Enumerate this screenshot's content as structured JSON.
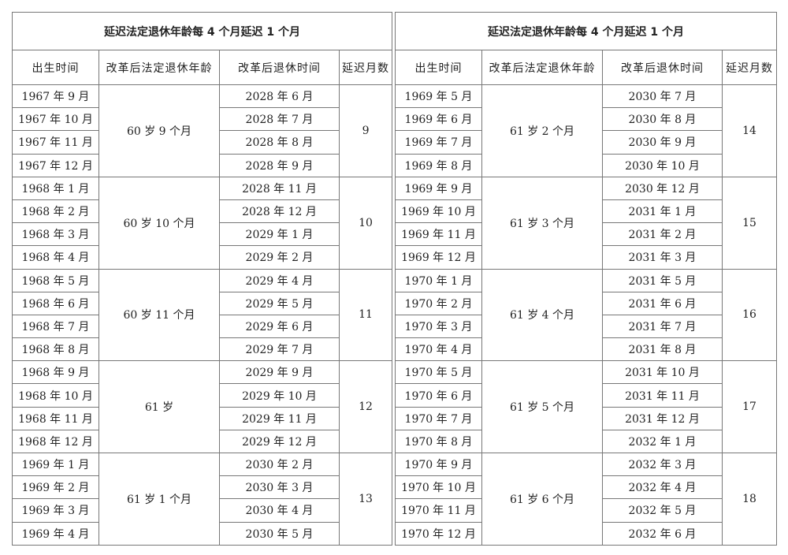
{
  "tables": [
    {
      "title": "延迟法定退休年龄每 4 个月延迟 1 个月",
      "headers": [
        "出生时间",
        "改革后法定退休年龄",
        "改革后退休时间",
        "延迟月数"
      ],
      "groups": [
        {
          "age": "60 岁 9 个月",
          "delay": "9",
          "rows": [
            [
              "1967 年 9 月",
              "2028 年 6 月"
            ],
            [
              "1967 年 10 月",
              "2028 年 7 月"
            ],
            [
              "1967 年 11 月",
              "2028 年 8 月"
            ],
            [
              "1967 年 12 月",
              "2028 年 9 月"
            ]
          ]
        },
        {
          "age": "60 岁 10 个月",
          "delay": "10",
          "rows": [
            [
              "1968 年 1 月",
              "2028 年 11 月"
            ],
            [
              "1968 年 2 月",
              "2028 年 12 月"
            ],
            [
              "1968 年 3 月",
              "2029 年 1 月"
            ],
            [
              "1968 年 4 月",
              "2029 年 2 月"
            ]
          ]
        },
        {
          "age": "60 岁 11 个月",
          "delay": "11",
          "rows": [
            [
              "1968 年 5 月",
              "2029 年 4 月"
            ],
            [
              "1968 年 6 月",
              "2029 年 5 月"
            ],
            [
              "1968 年 7 月",
              "2029 年 6 月"
            ],
            [
              "1968 年 8 月",
              "2029 年 7 月"
            ]
          ]
        },
        {
          "age": "61 岁",
          "delay": "12",
          "rows": [
            [
              "1968 年 9 月",
              "2029 年 9 月"
            ],
            [
              "1968 年 10 月",
              "2029 年 10 月"
            ],
            [
              "1968 年 11 月",
              "2029 年 11 月"
            ],
            [
              "1968 年 12 月",
              "2029 年 12 月"
            ]
          ]
        },
        {
          "age": "61 岁 1 个月",
          "delay": "13",
          "rows": [
            [
              "1969 年 1 月",
              "2030 年 2 月"
            ],
            [
              "1969 年 2 月",
              "2030 年 3 月"
            ],
            [
              "1969 年 3 月",
              "2030 年 4 月"
            ],
            [
              "1969 年 4 月",
              "2030 年 5 月"
            ]
          ]
        }
      ]
    },
    {
      "title": "延迟法定退休年龄每 4 个月延迟 1 个月",
      "headers": [
        "出生时间",
        "改革后法定退休年龄",
        "改革后退休时间",
        "延迟月数"
      ],
      "groups": [
        {
          "age": "61 岁 2 个月",
          "delay": "14",
          "rows": [
            [
              "1969 年 5 月",
              "2030 年 7 月"
            ],
            [
              "1969 年 6 月",
              "2030 年 8 月"
            ],
            [
              "1969 年 7 月",
              "2030 年 9 月"
            ],
            [
              "1969 年 8 月",
              "2030 年 10 月"
            ]
          ]
        },
        {
          "age": "61 岁 3 个月",
          "delay": "15",
          "rows": [
            [
              "1969 年 9 月",
              "2030 年 12 月"
            ],
            [
              "1969 年 10 月",
              "2031 年 1 月"
            ],
            [
              "1969 年 11 月",
              "2031 年 2 月"
            ],
            [
              "1969 年 12 月",
              "2031 年 3 月"
            ]
          ]
        },
        {
          "age": "61 岁 4 个月",
          "delay": "16",
          "rows": [
            [
              "1970 年 1 月",
              "2031 年 5 月"
            ],
            [
              "1970 年 2 月",
              "2031 年 6 月"
            ],
            [
              "1970 年 3 月",
              "2031 年 7 月"
            ],
            [
              "1970 年 4 月",
              "2031 年 8 月"
            ]
          ]
        },
        {
          "age": "61 岁 5 个月",
          "delay": "17",
          "rows": [
            [
              "1970 年 5 月",
              "2031 年 10 月"
            ],
            [
              "1970 年 6 月",
              "2031 年 11 月"
            ],
            [
              "1970 年 7 月",
              "2031 年 12 月"
            ],
            [
              "1970 年 8 月",
              "2032 年 1 月"
            ]
          ]
        },
        {
          "age": "61 岁 6 个月",
          "delay": "18",
          "rows": [
            [
              "1970 年 9 月",
              "2032 年 3 月"
            ],
            [
              "1970 年 10 月",
              "2032 年 4 月"
            ],
            [
              "1970 年 11 月",
              "2032 年 5 月"
            ],
            [
              "1970 年 12 月",
              "2032 年 6 月"
            ]
          ]
        }
      ]
    }
  ]
}
